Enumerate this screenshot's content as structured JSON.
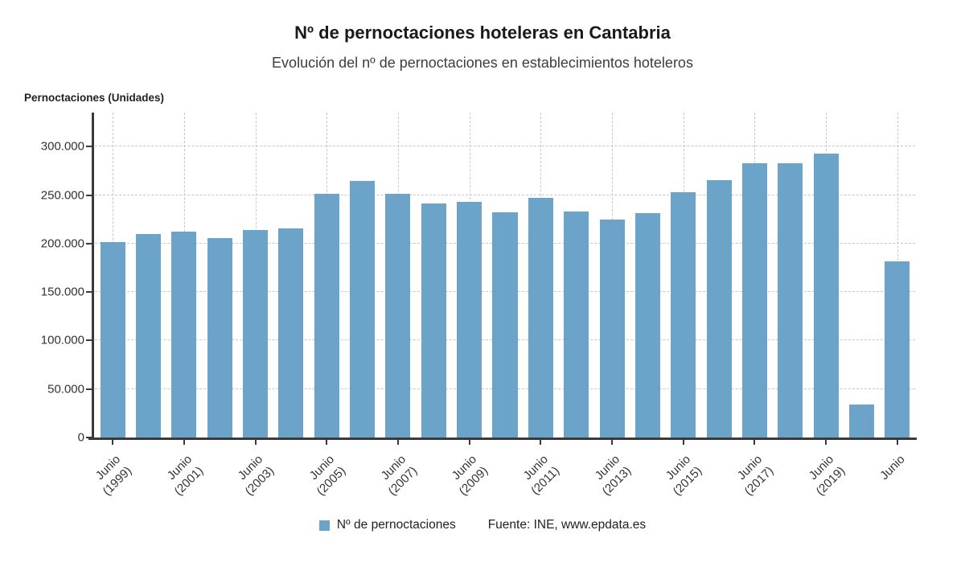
{
  "page": {
    "title": "Nº de pernoctaciones hoteleras en Cantabria",
    "subtitle": "Evolución del nº de pernoctaciones en establecimientos hoteleros",
    "units_label": "Pernoctaciones (Unidades)",
    "legend_label": "Nº de pernoctaciones",
    "source": "Fuente: INE, www.epdata.es"
  },
  "colors": {
    "bar": "#6BA4C8",
    "axis": "#3a3a3a",
    "grid": "#c8c8c8",
    "text": "#333333"
  },
  "chart_data": {
    "type": "bar",
    "title": "Nº de pernoctaciones hoteleras en Cantabria",
    "subtitle": "Evolución del nº de pernoctaciones en establecimientos hoteleros",
    "ylabel": "Pernoctaciones (Unidades)",
    "series_name": "Nº de pernoctaciones",
    "x": [
      1999,
      2000,
      2001,
      2002,
      2003,
      2004,
      2005,
      2006,
      2007,
      2008,
      2009,
      2010,
      2011,
      2012,
      2013,
      2014,
      2015,
      2016,
      2017,
      2018,
      2019,
      2020,
      2021
    ],
    "values": [
      201500,
      209500,
      212000,
      205500,
      214000,
      216000,
      251000,
      264500,
      251500,
      241500,
      243000,
      232000,
      247500,
      233000,
      224500,
      231500,
      253000,
      265500,
      282500,
      282500,
      293000,
      34000,
      181500
    ],
    "ylim": [
      0,
      335000
    ],
    "yticks": [
      {
        "value": 0,
        "label": "0"
      },
      {
        "value": 50000,
        "label": "50.000"
      },
      {
        "value": 100000,
        "label": "100.000"
      },
      {
        "value": 150000,
        "label": "150.000"
      },
      {
        "value": 200000,
        "label": "200.000"
      },
      {
        "value": 250000,
        "label": "250.000"
      },
      {
        "value": 300000,
        "label": "300.000"
      }
    ],
    "xticks": [
      {
        "index": 0,
        "lines": [
          "Junio",
          "(1999)"
        ]
      },
      {
        "index": 2,
        "lines": [
          "Junio",
          "(2001)"
        ]
      },
      {
        "index": 4,
        "lines": [
          "Junio",
          "(2003)"
        ]
      },
      {
        "index": 6,
        "lines": [
          "Junio",
          "(2005)"
        ]
      },
      {
        "index": 8,
        "lines": [
          "Junio",
          "(2007)"
        ]
      },
      {
        "index": 10,
        "lines": [
          "Junio",
          "(2009)"
        ]
      },
      {
        "index": 12,
        "lines": [
          "Junio",
          "(2011)"
        ]
      },
      {
        "index": 14,
        "lines": [
          "Junio",
          "(2013)"
        ]
      },
      {
        "index": 16,
        "lines": [
          "Junio",
          "(2015)"
        ]
      },
      {
        "index": 18,
        "lines": [
          "Junio",
          "(2017)"
        ]
      },
      {
        "index": 20,
        "lines": [
          "Junio",
          "(2019)"
        ]
      },
      {
        "index": 22,
        "lines": [
          "Junio"
        ]
      }
    ],
    "grid": "dashed",
    "legend_position": "bottom"
  }
}
